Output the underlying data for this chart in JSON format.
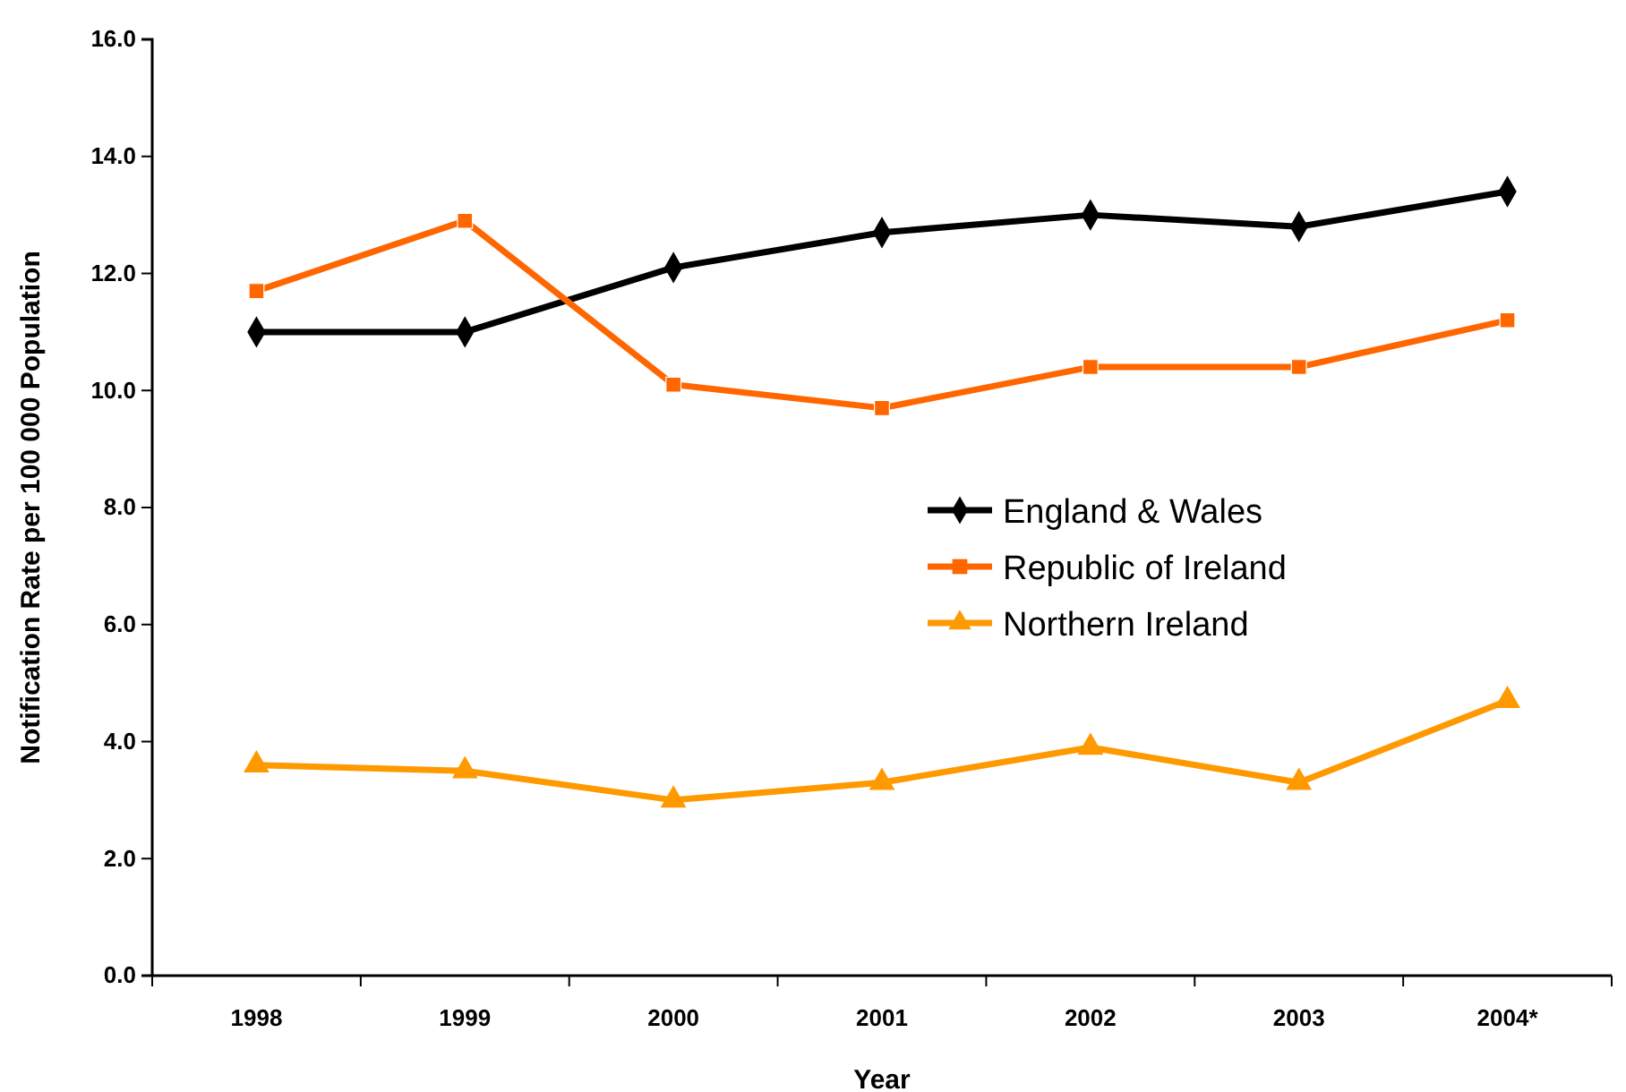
{
  "chart_data": {
    "type": "line",
    "xlabel": "Year",
    "ylabel": "Notification Rate per 100 000 Population",
    "categories": [
      "1998",
      "1999",
      "2000",
      "2001",
      "2002",
      "2003",
      "2004*"
    ],
    "series": [
      {
        "name": "England & Wales",
        "color": "#000000",
        "marker": "diamond",
        "values": [
          11.0,
          11.0,
          12.1,
          12.7,
          13.0,
          12.8,
          13.4
        ]
      },
      {
        "name": "Republic of Ireland",
        "color": "#ff6600",
        "marker": "square",
        "values": [
          11.7,
          12.9,
          10.1,
          9.7,
          10.4,
          10.4,
          11.2
        ]
      },
      {
        "name": "Northern Ireland",
        "color": "#ff9900",
        "marker": "triangle",
        "values": [
          3.6,
          3.5,
          3.0,
          3.3,
          3.9,
          3.3,
          4.7
        ]
      }
    ],
    "ylim": [
      0,
      16
    ],
    "yticks": [
      {
        "value": 0,
        "label": "0.0"
      },
      {
        "value": 2,
        "label": "2.0"
      },
      {
        "value": 4,
        "label": "4.0"
      },
      {
        "value": 6,
        "label": "6.0"
      },
      {
        "value": 8,
        "label": "8.0"
      },
      {
        "value": 10,
        "label": "10.0"
      },
      {
        "value": 12,
        "label": "12.0"
      },
      {
        "value": 14,
        "label": "14.0"
      },
      {
        "value": 16,
        "label": "16.0"
      }
    ],
    "legend": "right",
    "line_style": "solid"
  }
}
